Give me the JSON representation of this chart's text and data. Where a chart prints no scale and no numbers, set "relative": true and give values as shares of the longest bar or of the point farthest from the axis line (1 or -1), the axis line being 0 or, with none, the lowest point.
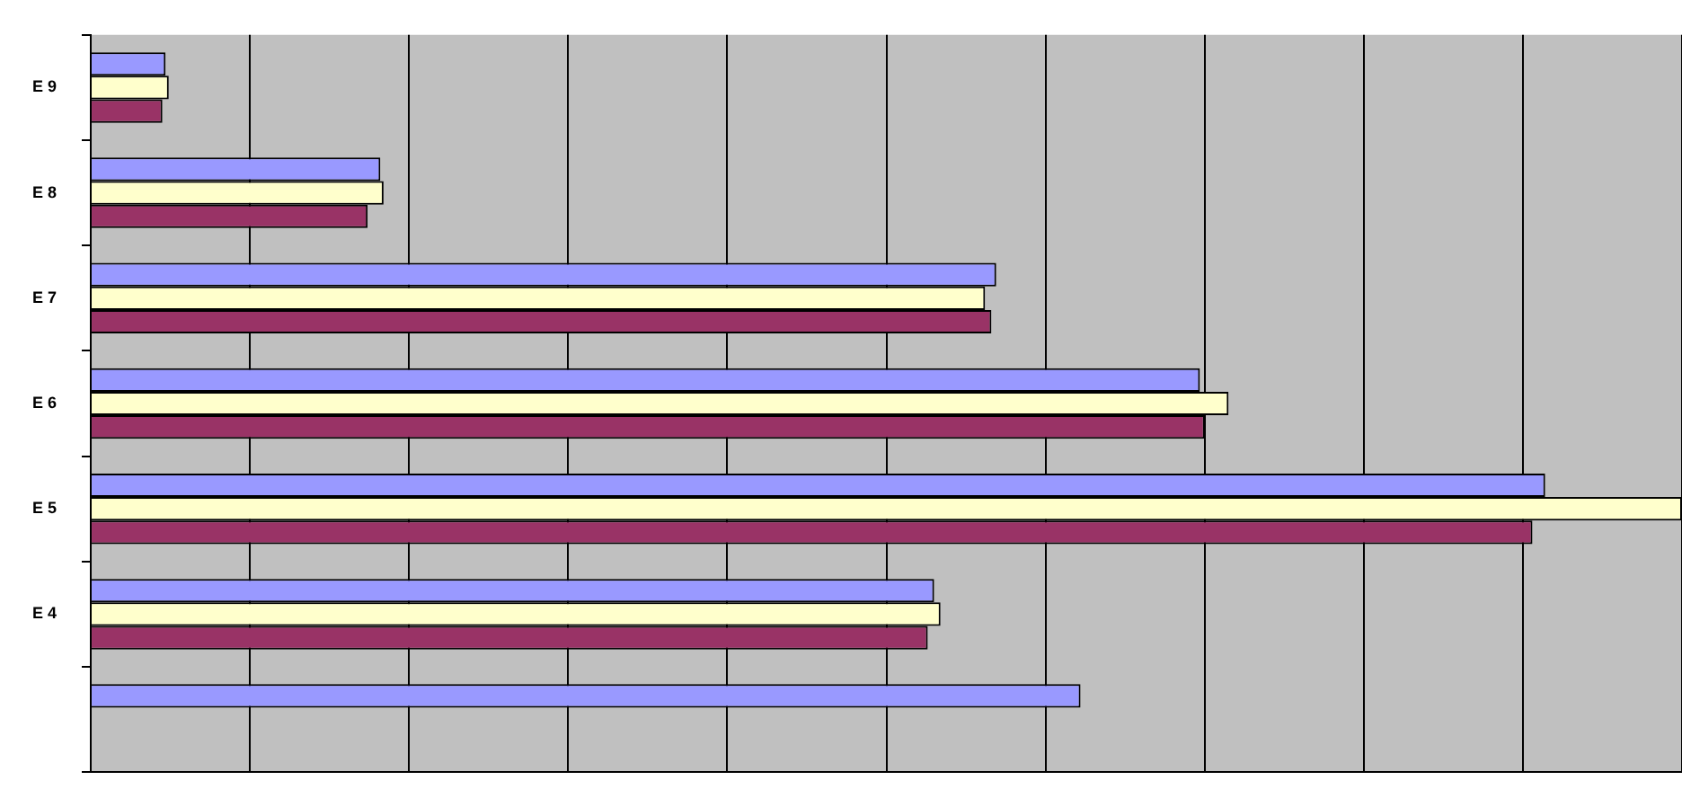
{
  "chart_data": {
    "type": "bar",
    "orientation": "horizontal",
    "relative": true,
    "grid": "x",
    "legend": false,
    "categories": [
      "E 9",
      "E 8",
      "E 7",
      "E 6",
      "E 5",
      "E 4",
      null
    ],
    "series": [
      {
        "color": "#9999ff",
        "values": [
          0.047,
          0.182,
          0.569,
          0.697,
          0.914,
          0.53,
          0.622
        ]
      },
      {
        "color": "#ffffcc",
        "values": [
          0.049,
          0.184,
          0.562,
          0.715,
          1,
          0.534,
          null
        ]
      },
      {
        "color": "#993366",
        "values": [
          0.045,
          0.174,
          0.566,
          0.7,
          0.906,
          0.526,
          null
        ]
      }
    ]
  }
}
